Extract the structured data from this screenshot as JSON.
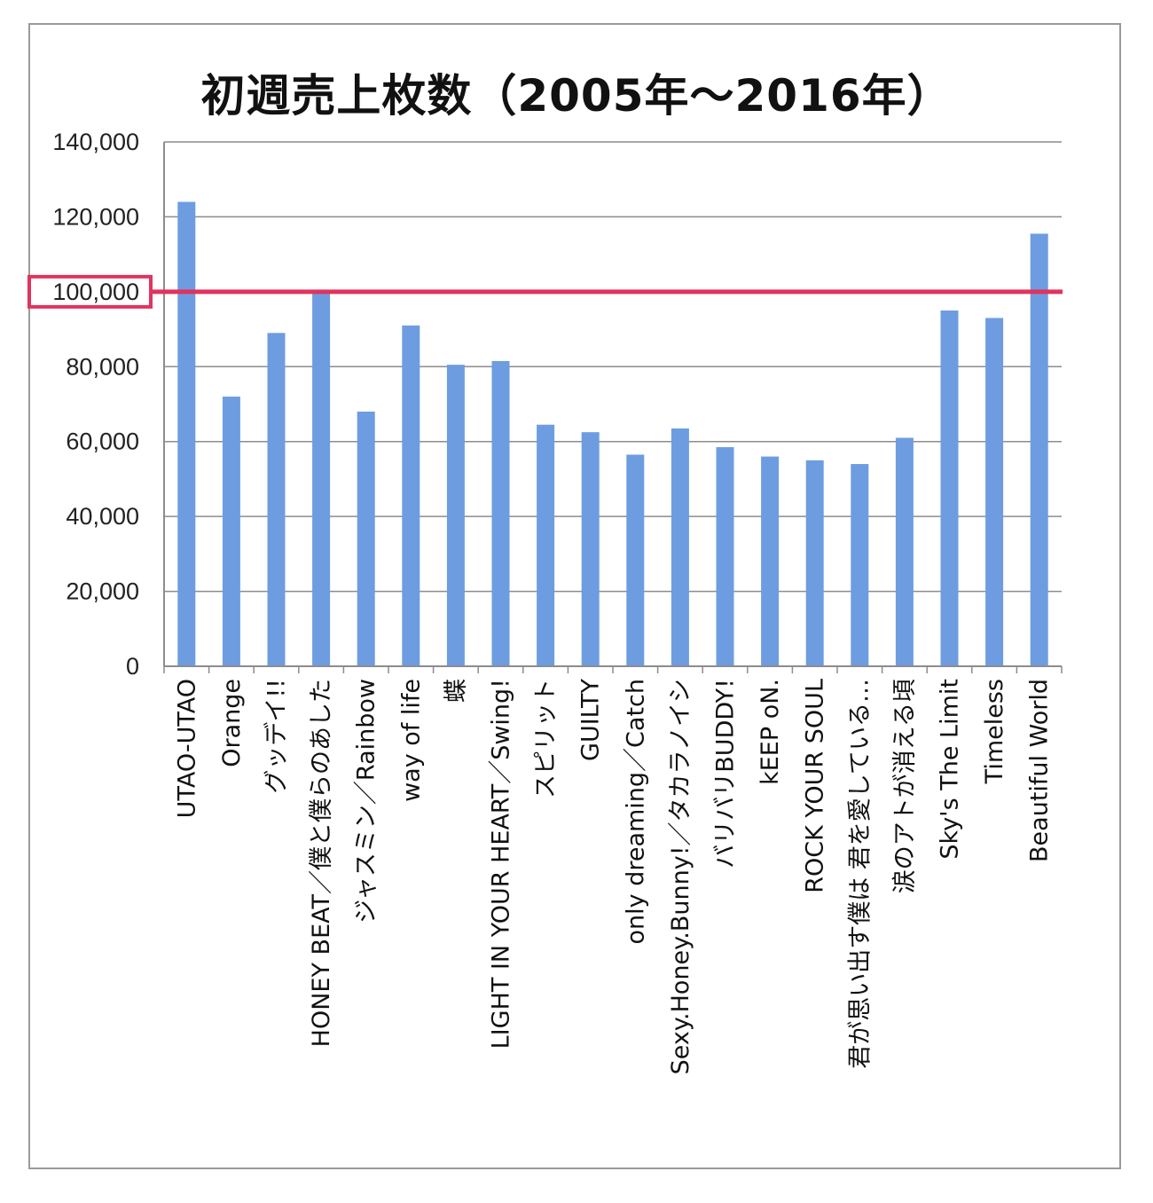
{
  "chart_data": {
    "type": "bar",
    "title": "初週売上枚数（2005年～2016年）",
    "xlabel": "",
    "ylabel": "",
    "ylim": [
      0,
      140000
    ],
    "yticks": [
      0,
      20000,
      40000,
      60000,
      80000,
      100000,
      120000,
      140000
    ],
    "ytick_labels": [
      "0",
      "20,000",
      "40,000",
      "60,000",
      "80,000",
      "100,000",
      "120,000",
      "140,000"
    ],
    "grid": true,
    "legend": "none",
    "categories": [
      "UTAO-UTAO",
      "Orange",
      "グッデイ!!",
      "HONEY BEAT／僕と僕らのあした",
      "ジャスミン／Rainbow",
      "way of life",
      "蝶",
      "LIGHT IN YOUR HEART／Swing!",
      "スピリット",
      "GUILTY",
      "only dreaming／Catch",
      "Sexy.Honey.Bunny!／タカラノイシ",
      "バリバリBUDDY!",
      "kEEP oN.",
      "ROCK YOUR SOUL",
      "君が思い出す僕は 君を愛している…",
      "涙のアトが消える頃",
      "Sky's The Limit",
      "Timeless",
      "Beautiful World"
    ],
    "values": [
      124000,
      72000,
      89000,
      100000,
      68000,
      91000,
      80500,
      81500,
      64500,
      62500,
      56500,
      63500,
      58500,
      56000,
      55000,
      54000,
      61000,
      95000,
      93000,
      115500
    ],
    "bar_color": "#6d9de0",
    "reference_line": {
      "value": 100000,
      "color": "#e0335e"
    },
    "highlighted_tick": {
      "label": "100,000",
      "color": "#e0335e"
    }
  }
}
